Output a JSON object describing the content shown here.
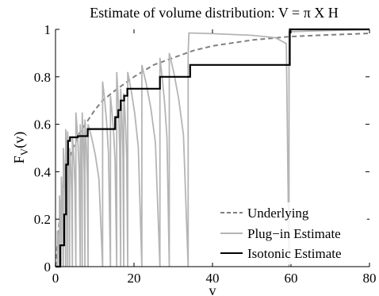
{
  "chart_data": {
    "type": "line",
    "title": "Estimate of volume distribution: V = π X H",
    "xlabel": "v",
    "ylabel_main": "F",
    "ylabel_sub": "V",
    "ylabel_arg": "(v)",
    "xlim": [
      0,
      80
    ],
    "ylim": [
      0,
      1
    ],
    "xticks": [
      0,
      20,
      40,
      60,
      80
    ],
    "yticks": [
      0,
      0.2,
      0.4,
      0.6,
      0.8,
      1
    ],
    "xtick_labels": [
      "0",
      "20",
      "40",
      "60",
      "80"
    ],
    "ytick_labels": [
      "0",
      "0.2",
      "0.4",
      "0.6",
      "0.8",
      "1"
    ],
    "grid": false,
    "legend_position": "bottom-right",
    "series": [
      {
        "name": "Underlying",
        "style": "dashed",
        "color": "#808080",
        "x": [
          0,
          0.5,
          1,
          2,
          3,
          4,
          6,
          8,
          10,
          12,
          15,
          20,
          25,
          30,
          35,
          40,
          50,
          60,
          70,
          80
        ],
        "y": [
          0,
          0.1,
          0.2,
          0.32,
          0.42,
          0.48,
          0.56,
          0.61,
          0.66,
          0.7,
          0.74,
          0.8,
          0.85,
          0.88,
          0.91,
          0.93,
          0.955,
          0.97,
          0.977,
          0.983
        ]
      },
      {
        "name": "Plug−in Estimate",
        "style": "solid",
        "color": "#b5b5b5",
        "jump_x": [
          0.5,
          1.0,
          1.5,
          2.0,
          2.6,
          3.1,
          3.6,
          4.3,
          5.2,
          6.3,
          6.8,
          7.5,
          8.3,
          12.0,
          14.0,
          15.6,
          16.6,
          17.4,
          18.4,
          22.0,
          26.6,
          29.0,
          33.8,
          59.5
        ],
        "peak_y": [
          0.15,
          0.3,
          0.38,
          0.5,
          0.58,
          0.57,
          0.5,
          0.55,
          0.65,
          0.6,
          0.65,
          0.62,
          0.6,
          0.78,
          0.72,
          0.82,
          0.75,
          0.73,
          0.82,
          0.85,
          0.88,
          0.9,
          0.9,
          0.99
        ],
        "tail": [
          [
            34,
            0.985
          ],
          [
            40,
            0.982
          ],
          [
            50,
            0.975
          ],
          [
            56,
            0.965
          ],
          [
            58.8,
            0.94
          ]
        ],
        "end_point": [
          80,
          1.0
        ]
      },
      {
        "name": "Isotonic Estimate",
        "style": "solid",
        "color": "#000000",
        "x": [
          0,
          1.2,
          2.2,
          2.7,
          3.2,
          3.7,
          5.7,
          8.2,
          15.2,
          16.0,
          16.6,
          17.5,
          18.3,
          26.6,
          34.3,
          59.7,
          80
        ],
        "y": [
          0,
          0.09,
          0.22,
          0.43,
          0.53,
          0.545,
          0.55,
          0.58,
          0.63,
          0.66,
          0.7,
          0.72,
          0.75,
          0.8,
          0.85,
          1.0,
          1.0
        ]
      }
    ]
  }
}
